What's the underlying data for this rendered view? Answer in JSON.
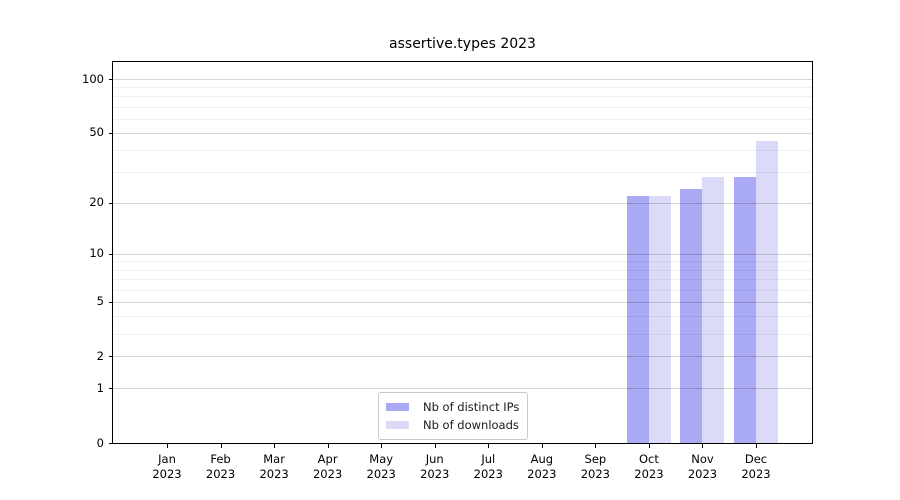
{
  "page": {
    "background": "#ffffff"
  },
  "chart_data": {
    "type": "bar",
    "title": "assertive.types 2023",
    "x_tick_months": [
      "Jan",
      "Feb",
      "Mar",
      "Apr",
      "May",
      "Jun",
      "Jul",
      "Aug",
      "Sep",
      "Oct",
      "Nov",
      "Dec"
    ],
    "x_tick_year": "2023",
    "categories": [
      "Jan 2023",
      "Feb 2023",
      "Mar 2023",
      "Apr 2023",
      "May 2023",
      "Jun 2023",
      "Jul 2023",
      "Aug 2023",
      "Sep 2023",
      "Oct 2023",
      "Nov 2023",
      "Dec 2023"
    ],
    "series": [
      {
        "name": "Nb of distinct IPs",
        "color": "#a9a9f4",
        "values": [
          0,
          0,
          0,
          0,
          0,
          0,
          0,
          0,
          0,
          22,
          24,
          28
        ]
      },
      {
        "name": "Nb of downloads",
        "color": "#dbdbf9",
        "values": [
          0,
          0,
          0,
          0,
          0,
          0,
          0,
          0,
          0,
          22,
          28,
          45
        ]
      }
    ],
    "y_scale": "log1p",
    "y_ticks": [
      0,
      1,
      2,
      5,
      10,
      20,
      50,
      100
    ],
    "y_minor_gridlines": [
      3,
      4,
      6,
      7,
      8,
      9,
      30,
      40,
      60,
      70,
      80,
      90
    ],
    "ylim": [
      0,
      125
    ],
    "xlabel": "",
    "ylabel": "",
    "grid": true,
    "legend": {
      "position": "lower center",
      "entries": [
        "Nb of distinct IPs",
        "Nb of downloads"
      ]
    }
  },
  "colors": {
    "bar_ips": "#a9a9f4",
    "bar_downloads": "#dbdbf9",
    "axis": "#000000",
    "grid_major": "#d6d6d6",
    "grid_minor": "#efefef",
    "legend_border": "#c9c9c9"
  }
}
